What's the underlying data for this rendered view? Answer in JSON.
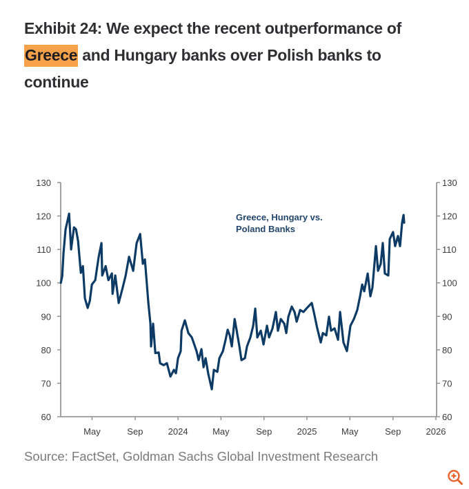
{
  "header": {
    "title_line1": "Exhibit 24: We expect the recent outperformance of",
    "title_highlight": "Greece",
    "title_line2_rest": " and Hungary banks over Polish banks to",
    "title_line3": "continue"
  },
  "footer": {
    "source": "Source: FactSet, Goldman Sachs Global Investment Research",
    "zoom_icon": "zoom-in-icon"
  },
  "colors": {
    "highlight": "#f7a24b",
    "series_line": "#0d3b66",
    "annotation": "#23466f",
    "axis": "#8a8a8a",
    "zoom_icon": "#e8622c"
  },
  "chart_data": {
    "type": "line",
    "title": "",
    "xlabel": "",
    "ylabel": "",
    "annotation_lines": [
      "Greece, Hungary vs.",
      "Poland Banks"
    ],
    "grid": false,
    "legend": "none",
    "ylim": [
      60,
      130
    ],
    "yticks": [
      60,
      70,
      80,
      90,
      100,
      110,
      120,
      130
    ],
    "right_axis": true,
    "xlim": [
      2023.09,
      2026.0
    ],
    "xticks": [
      {
        "label": "May",
        "t": 2023.333
      },
      {
        "label": "Sep",
        "t": 2023.667
      },
      {
        "label": "2024",
        "t": 2024.0
      },
      {
        "label": "May",
        "t": 2024.333
      },
      {
        "label": "Sep",
        "t": 2024.667
      },
      {
        "label": "2025",
        "t": 2025.0
      },
      {
        "label": "May",
        "t": 2025.333
      },
      {
        "label": "Sep",
        "t": 2025.667
      },
      {
        "label": "2026",
        "t": 2026.0
      }
    ],
    "series": [
      {
        "name": "Greece, Hungary vs. Poland Banks",
        "points": [
          [
            2023.091,
            100
          ],
          [
            2023.102,
            102
          ],
          [
            2023.112,
            109
          ],
          [
            2023.128,
            116
          ],
          [
            2023.155,
            120.7
          ],
          [
            2023.171,
            110
          ],
          [
            2023.193,
            116.6
          ],
          [
            2023.209,
            116
          ],
          [
            2023.225,
            112.5
          ],
          [
            2023.246,
            103
          ],
          [
            2023.262,
            105
          ],
          [
            2023.278,
            95.4
          ],
          [
            2023.299,
            92.5
          ],
          [
            2023.316,
            94.6
          ],
          [
            2023.332,
            99.5
          ],
          [
            2023.358,
            100.8
          ],
          [
            2023.385,
            107.8
          ],
          [
            2023.406,
            111.9
          ],
          [
            2023.412,
            102.2
          ],
          [
            2023.439,
            105
          ],
          [
            2023.46,
            100.8
          ],
          [
            2023.487,
            102.8
          ],
          [
            2023.492,
            96.7
          ],
          [
            2023.513,
            102.2
          ],
          [
            2023.54,
            94
          ],
          [
            2023.567,
            98
          ],
          [
            2023.594,
            102.2
          ],
          [
            2023.62,
            107.8
          ],
          [
            2023.652,
            103.6
          ],
          [
            2023.679,
            111.9
          ],
          [
            2023.706,
            114.6
          ],
          [
            2023.727,
            105.7
          ],
          [
            2023.743,
            107
          ],
          [
            2023.77,
            94
          ],
          [
            2023.786,
            87.8
          ],
          [
            2023.791,
            81
          ],
          [
            2023.807,
            87.8
          ],
          [
            2023.824,
            79
          ],
          [
            2023.85,
            79.2
          ],
          [
            2023.861,
            76
          ],
          [
            2023.888,
            75.4
          ],
          [
            2023.914,
            76
          ],
          [
            2023.941,
            72
          ],
          [
            2023.968,
            74
          ],
          [
            2023.984,
            73
          ],
          [
            2024.0,
            77.5
          ],
          [
            2024.021,
            79.6
          ],
          [
            2024.027,
            85.7
          ],
          [
            2024.053,
            88.8
          ],
          [
            2024.08,
            85
          ],
          [
            2024.107,
            83.7
          ],
          [
            2024.144,
            79.6
          ],
          [
            2024.16,
            76.9
          ],
          [
            2024.182,
            80.2
          ],
          [
            2024.198,
            74.8
          ],
          [
            2024.214,
            77.5
          ],
          [
            2024.235,
            72.8
          ],
          [
            2024.262,
            68.2
          ],
          [
            2024.278,
            74
          ],
          [
            2024.305,
            73.4
          ],
          [
            2024.321,
            77.5
          ],
          [
            2024.348,
            79.6
          ],
          [
            2024.369,
            83
          ],
          [
            2024.385,
            86
          ],
          [
            2024.401,
            84.3
          ],
          [
            2024.417,
            81
          ],
          [
            2024.439,
            89.2
          ],
          [
            2024.455,
            85.7
          ],
          [
            2024.476,
            81
          ],
          [
            2024.492,
            76.9
          ],
          [
            2024.519,
            77.5
          ],
          [
            2024.535,
            81
          ],
          [
            2024.561,
            83.7
          ],
          [
            2024.583,
            87.2
          ],
          [
            2024.599,
            92.3
          ],
          [
            2024.615,
            83.7
          ],
          [
            2024.642,
            85.7
          ],
          [
            2024.663,
            81.6
          ],
          [
            2024.69,
            87.2
          ],
          [
            2024.706,
            83.7
          ],
          [
            2024.733,
            86.4
          ],
          [
            2024.759,
            91.3
          ],
          [
            2024.775,
            85.7
          ],
          [
            2024.797,
            89.2
          ],
          [
            2024.824,
            87.8
          ],
          [
            2024.84,
            85
          ],
          [
            2024.856,
            89.9
          ],
          [
            2024.882,
            92.9
          ],
          [
            2024.904,
            91.3
          ],
          [
            2024.92,
            88.4
          ],
          [
            2024.947,
            91.9
          ],
          [
            2024.973,
            91.3
          ],
          [
            2025.0,
            92.5
          ],
          [
            2025.037,
            94
          ],
          [
            2025.053,
            91.3
          ],
          [
            2025.08,
            86.4
          ],
          [
            2025.107,
            82.2
          ],
          [
            2025.123,
            85
          ],
          [
            2025.15,
            84.3
          ],
          [
            2025.171,
            89.9
          ],
          [
            2025.187,
            85.7
          ],
          [
            2025.214,
            86.4
          ],
          [
            2025.241,
            83
          ],
          [
            2025.257,
            91.3
          ],
          [
            2025.283,
            82.2
          ],
          [
            2025.31,
            79.6
          ],
          [
            2025.337,
            87.2
          ],
          [
            2025.364,
            89.2
          ],
          [
            2025.39,
            91.9
          ],
          [
            2025.412,
            96
          ],
          [
            2025.428,
            99.5
          ],
          [
            2025.444,
            97.5
          ],
          [
            2025.471,
            102.8
          ],
          [
            2025.492,
            96
          ],
          [
            2025.508,
            98.6
          ],
          [
            2025.535,
            111
          ],
          [
            2025.551,
            103.6
          ],
          [
            2025.572,
            105.7
          ],
          [
            2025.588,
            111.9
          ],
          [
            2025.604,
            102.8
          ],
          [
            2025.631,
            102.2
          ],
          [
            2025.642,
            113.1
          ],
          [
            2025.668,
            115.2
          ],
          [
            2025.684,
            111
          ],
          [
            2025.706,
            114
          ],
          [
            2025.722,
            111
          ],
          [
            2025.738,
            118
          ],
          [
            2025.749,
            120.3
          ],
          [
            2025.754,
            118
          ]
        ]
      }
    ]
  }
}
